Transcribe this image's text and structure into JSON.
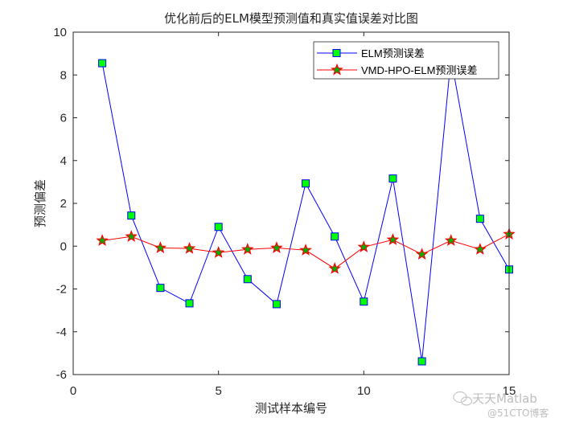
{
  "chart_data": {
    "type": "line",
    "title": "优化前后的ELM模型预测值和真实值误差对比图",
    "xlabel": "测试样本编号",
    "ylabel": "预测偏差",
    "xlim": [
      0,
      15
    ],
    "ylim": [
      -6,
      10
    ],
    "xticks": [
      0,
      5,
      10,
      15
    ],
    "yticks": [
      -6,
      -4,
      -2,
      0,
      2,
      4,
      6,
      8,
      10
    ],
    "grid": false,
    "legend_position": "upper right",
    "x": [
      1,
      2,
      3,
      4,
      5,
      6,
      7,
      8,
      9,
      10,
      11,
      12,
      13,
      14,
      15
    ],
    "series": [
      {
        "name": "ELM预测误差",
        "color": "#0000ff",
        "marker": "square",
        "marker_fill": "#00ff00",
        "values": [
          8.55,
          1.43,
          -1.95,
          -2.67,
          0.9,
          -1.54,
          -2.71,
          2.93,
          0.45,
          -2.59,
          3.16,
          -5.38,
          8.8,
          1.28,
          -1.09
        ]
      },
      {
        "name": "VMD-HPO-ELM预测误差",
        "color": "#ff0000",
        "marker": "star",
        "marker_fill": "#00b000",
        "values": [
          0.26,
          0.45,
          -0.08,
          -0.11,
          -0.3,
          -0.15,
          -0.08,
          -0.19,
          -1.05,
          -0.04,
          0.3,
          -0.38,
          0.26,
          -0.15,
          0.56
        ]
      }
    ]
  },
  "watermark": {
    "line1": "天天Matlab",
    "line2": "@51CTO博客"
  }
}
